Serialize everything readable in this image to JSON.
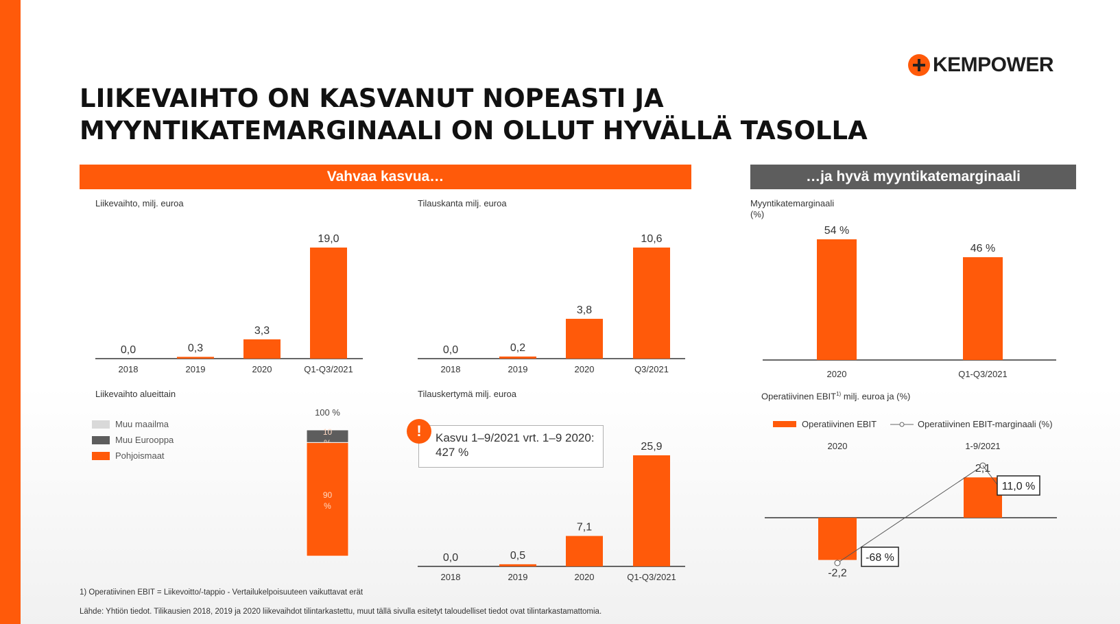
{
  "logo": {
    "text": "KEMPOWER"
  },
  "title": {
    "line1": "LIIKEVAIHTO ON KASVANUT NOPEASTI JA",
    "line2": "MYYNTIKATEMARGINAALI ON OLLUT HYVÄLLÄ TASOLLA"
  },
  "banners": {
    "left": "Vahvaa kasvua…",
    "right": "…ja hyvä myyntikatemarginaali"
  },
  "colors": {
    "accent": "#ff5a0a",
    "dark_gray": "#5d5d5d",
    "light_gray": "#d9d9d9"
  },
  "chart_data": [
    {
      "id": "liikevaihto",
      "type": "bar",
      "title": "Liikevaihto, milj. euroa",
      "categories": [
        "2018",
        "2019",
        "2020",
        "Q1-Q3/2021"
      ],
      "values": [
        0.0,
        0.3,
        3.3,
        19.0
      ],
      "value_labels": [
        "0,0",
        "0,3",
        "3,3",
        "19,0"
      ],
      "ylim": [
        0,
        19.0
      ]
    },
    {
      "id": "tilauskanta",
      "type": "bar",
      "title": "Tilauskanta milj. euroa",
      "categories": [
        "2018",
        "2019",
        "2020",
        "Q3/2021"
      ],
      "values": [
        0.0,
        0.2,
        3.8,
        10.6
      ],
      "value_labels": [
        "0,0",
        "0,2",
        "3,8",
        "10,6"
      ],
      "ylim": [
        0,
        10.6
      ]
    },
    {
      "id": "myyntikatemarginaali",
      "type": "bar",
      "title": "Myyntikatemarginaali",
      "title2": "(%)",
      "categories": [
        "2020",
        "Q1-Q3/2021"
      ],
      "values": [
        54,
        46
      ],
      "value_labels": [
        "54 %",
        "46 %"
      ],
      "ylim": [
        0,
        54
      ]
    },
    {
      "id": "alueittain",
      "type": "bar",
      "stacked": true,
      "title": "Liikevaihto alueittain",
      "top_label": "100 %",
      "series": [
        {
          "name": "Muu maailma",
          "value": 0,
          "color": "#d9d9d9"
        },
        {
          "name": "Muu Eurooppa",
          "value": 10,
          "color": "#5d5d5d",
          "label": "10 %"
        },
        {
          "name": "Pohjoismaat",
          "value": 90,
          "color": "#ff5a0a",
          "label": "90 %"
        }
      ]
    },
    {
      "id": "tilauskertyma",
      "type": "bar",
      "title": "Tilauskertymä milj. euroa",
      "categories": [
        "2018",
        "2019",
        "2020",
        "Q1-Q3/2021"
      ],
      "values": [
        0.0,
        0.5,
        7.1,
        25.9
      ],
      "value_labels": [
        "0,0",
        "0,5",
        "7,1",
        "25,9"
      ],
      "ylim": [
        0,
        25.9
      ],
      "callout": {
        "icon": "!",
        "line1": "Kasvu 1–9/2021 vrt. 1–9 2020:",
        "line2": "427 %"
      }
    },
    {
      "id": "ebit",
      "type": "bar",
      "title": "Operatiivinen EBIT",
      "title_sup": "1)",
      "title_rest": " milj. euroa ja (%)",
      "legend": [
        "Operatiivinen EBIT",
        "Operatiivinen EBIT-marginaali (%)"
      ],
      "categories": [
        "2020",
        "1-9/2021"
      ],
      "values": [
        -2.2,
        2.1
      ],
      "value_labels": [
        "-2,2",
        "2,1"
      ],
      "margin_values": [
        -68,
        11.0
      ],
      "margin_labels": [
        "-68 %",
        "11,0 %"
      ]
    }
  ],
  "footnotes": {
    "note1": "1) Operatiivinen EBIT = Liikevoitto/-tappio - Vertailukelpoisuuteen vaikuttavat erät",
    "source": "Lähde: Yhtiön tiedot. Tilikausien 2018, 2019 ja 2020 liikevaihdot tilintarkastettu, muut tällä sivulla esitetyt taloudelliset tiedot ovat tilintarkastamattomia."
  }
}
